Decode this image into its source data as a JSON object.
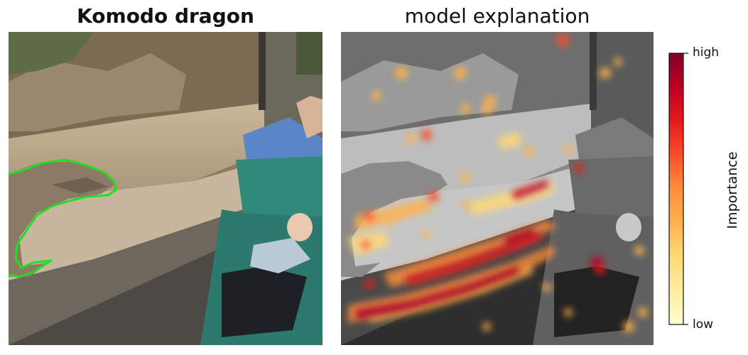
{
  "left_panel": {
    "title": "Komodo dragon"
  },
  "right_panel": {
    "title": "model explanation"
  },
  "colorbar": {
    "label": "Importance",
    "high_label": "high",
    "low_label": "low",
    "colors": [
      "#800026",
      "#bd0026",
      "#e31a1c",
      "#fc4e2a",
      "#fd8d3c",
      "#feb24c",
      "#fed976",
      "#ffeda0",
      "#ffffcc"
    ]
  },
  "outline_color": "#22dd22"
}
